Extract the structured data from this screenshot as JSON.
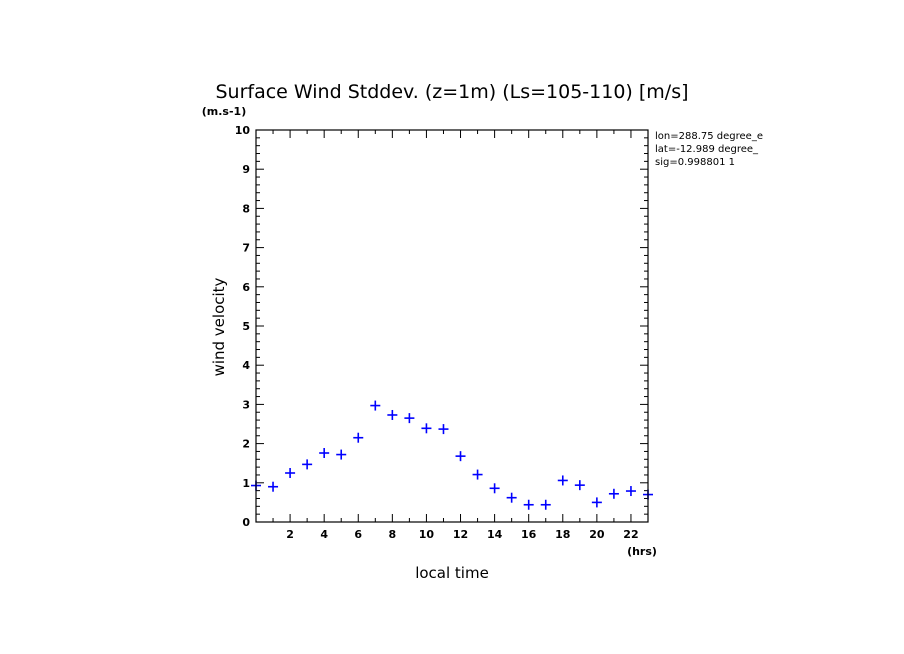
{
  "chart_data": {
    "type": "scatter",
    "title": "Surface Wind Stddev. (z=1m) (Ls=105-110) [m/s]",
    "xlabel": "local time",
    "ylabel": "wind velocity",
    "x_unit": "(hrs)",
    "y_unit": "(m.s-1)",
    "xlim": [
      0,
      23
    ],
    "ylim": [
      0,
      10
    ],
    "x_ticks": [
      2,
      4,
      6,
      8,
      10,
      12,
      14,
      16,
      18,
      20,
      22
    ],
    "y_ticks": [
      0,
      1,
      2,
      3,
      4,
      5,
      6,
      7,
      8,
      9,
      10
    ],
    "marker_color": "#0000ff",
    "info_lines": [
      "lon=288.75 degree_e",
      "lat=-12.989 degree_",
      "sig=0.998801 1"
    ],
    "x": [
      0,
      1,
      2,
      3,
      4,
      5,
      6,
      7,
      8,
      9,
      10,
      11,
      12,
      13,
      14,
      15,
      16,
      17,
      18,
      19,
      20,
      21,
      22,
      23
    ],
    "y": [
      0.93,
      0.9,
      1.25,
      1.47,
      1.76,
      1.72,
      2.15,
      2.97,
      2.73,
      2.65,
      2.39,
      2.37,
      1.68,
      1.21,
      0.86,
      0.62,
      0.44,
      0.44,
      1.06,
      0.94,
      0.5,
      0.72,
      0.79,
      0.7
    ]
  }
}
